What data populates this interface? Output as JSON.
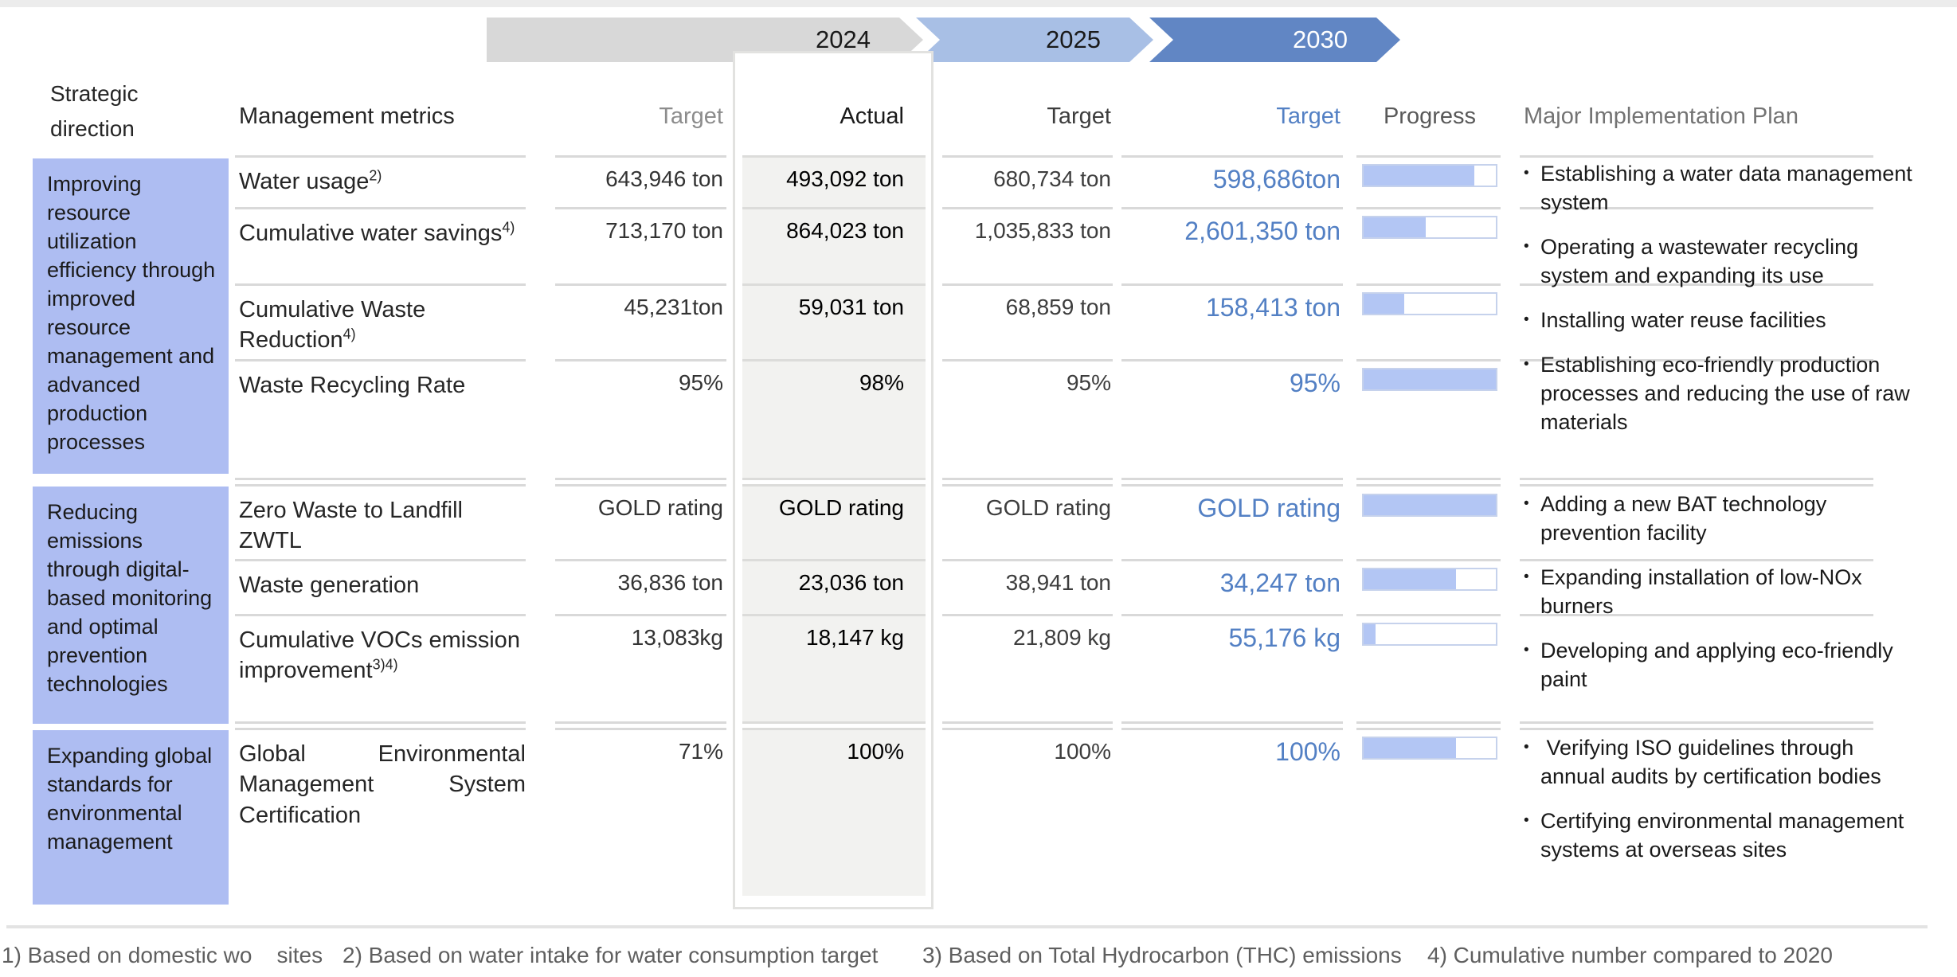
{
  "timeline": {
    "items": [
      {
        "year": "2024"
      },
      {
        "year": "2025"
      },
      {
        "year": "2030"
      }
    ]
  },
  "header": {
    "strategic_direction": "Strategic direction",
    "management_metrics": "Management metrics",
    "target_2024": "Target",
    "actual": "Actual",
    "target_2025": "Target",
    "target_2030": "Target",
    "progress": "Progress",
    "plan": "Major Implementation Plan"
  },
  "groups": [
    {
      "direction": "Improving resource utilization efficiency through improved resource management and advanced production processes",
      "rows": [
        {
          "metric": "Water usage",
          "sup": "2)",
          "target_2024": "643,946 ton",
          "actual": "493,092 ton",
          "target_2025": "680,734 ton",
          "target_2030": "598,686ton",
          "progress_pct": 84
        },
        {
          "metric": "Cumulative water savings",
          "sup": "4)",
          "target_2024": "713,170 ton",
          "actual": "864,023 ton",
          "target_2025": "1,035,833 ton",
          "target_2030": "2,601,350 ton",
          "progress_pct": 47
        },
        {
          "metric": "Cumulative Waste Reduction",
          "sup": "4)",
          "target_2024": "45,231ton",
          "actual": "59,031 ton",
          "target_2025": "68,859 ton",
          "target_2030": "158,413 ton",
          "progress_pct": 31
        },
        {
          "metric": "Waste Recycling Rate",
          "sup": "",
          "target_2024": "95%",
          "actual": "98%",
          "target_2025": "95%",
          "target_2030": "95%",
          "progress_pct": 100
        }
      ],
      "plans": [
        "Establishing a water data management system",
        "Operating a wastewater recycling system and expanding its use",
        "Installing water reuse facilities",
        "Establishing eco-friendly production processes and reducing the use of raw materials"
      ]
    },
    {
      "direction": "Reducing emissions through digital-based monitoring and optimal prevention technologies",
      "rows": [
        {
          "metric": "Zero Waste to Landfill ZWTL",
          "sup": "",
          "target_2024": "GOLD rating",
          "actual": "GOLD rating",
          "target_2025": "GOLD rating",
          "target_2030": "GOLD rating",
          "progress_pct": 100
        },
        {
          "metric": "Waste generation",
          "sup": "",
          "target_2024": "36,836 ton",
          "actual": "23,036 ton",
          "target_2025": "38,941 ton",
          "target_2030": "34,247 ton",
          "progress_pct": 70
        },
        {
          "metric": "Cumulative VOCs emission improvement",
          "sup": "3)4)",
          "target_2024": "13,083kg",
          "actual": "18,147 kg",
          "target_2025": "21,809 kg",
          "target_2030": "55,176 kg",
          "progress_pct": 9
        }
      ],
      "plans": [
        "Adding a new BAT technology prevention facility",
        "Expanding installation of low-NOx burners",
        "Developing and applying eco-friendly paint"
      ]
    },
    {
      "direction": "Expanding global standards for environmental management",
      "rows": [
        {
          "metric": "Global Environmental Management System Certification",
          "sup": "",
          "target_2024": "71%",
          "actual": "100%",
          "target_2025": "100%",
          "target_2030": "100%",
          "progress_pct": 70
        }
      ],
      "plans": [
        " Verifying ISO guidelines through annual audits by certification bodies",
        "Certifying environmental management systems at overseas sites"
      ]
    }
  ],
  "footnotes": [
    "1) Based on domestic wo    sites",
    "2) Based on water intake for water consumption target",
    "3) Based on Total Hydrocarbon (THC) emissions",
    "4) Cumulative number compared to 2020"
  ],
  "colors": {
    "accent_blue_text": "#5380c4",
    "group_cell_bg": "#aebdf2",
    "progress_fill": "#b3c6f4",
    "chevron_2024": "#d8d8d8",
    "chevron_2025": "#a8bfe5",
    "chevron_2030": "#6186c4",
    "actual_cell_bg": "#f2f2f0",
    "row_line": "#d9d9d9"
  }
}
